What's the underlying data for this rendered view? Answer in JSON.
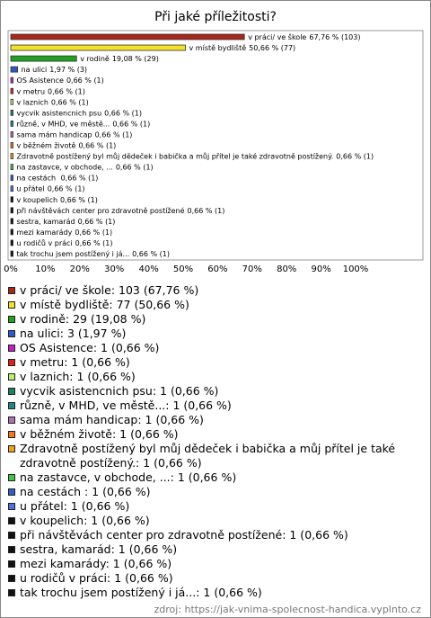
{
  "chart_data": {
    "type": "barh",
    "title": "Při jaké příležitosti?",
    "categories": [
      "v práci/ ve škole",
      "v místě bydliště",
      "v rodině",
      "na ulici",
      "OS Asistence",
      "v metru",
      "v laznich",
      "vycvik asistencnich psu",
      "různě, v MHD, ve městě...",
      "sama mám handicap",
      "v běžném životě",
      "Zdravotně postížený byl můj dědeček i babička a můj přítel je také zdravotně postížený.",
      "na zastavce, v obchode, ...",
      "na cestách ",
      "u přátel",
      "v koupelich",
      "při návštěvách center pro zdravotně postížené",
      "sestra, kamarád",
      "mezi kamarády",
      "u rodičů v práci",
      "tak trochu jsem postížený i já..."
    ],
    "values": [
      67.76,
      50.66,
      19.08,
      1.97,
      0.66,
      0.66,
      0.66,
      0.66,
      0.66,
      0.66,
      0.66,
      0.66,
      0.66,
      0.66,
      0.66,
      0.66,
      0.66,
      0.66,
      0.66,
      0.66,
      0.66
    ],
    "value_labels": [
      "67,76 % (103)",
      "50,66 % (77)",
      "19,08 % (29)",
      "1,97 % (3)",
      "0,66 % (1)",
      "0,66 % (1)",
      "0,66 % (1)",
      "0,66 % (1)",
      "0,66 % (1)",
      "0,66 % (1)",
      "0,66 % (1)",
      "0,66 % (1)",
      "0,66 % (1)",
      "0,66 % (1)",
      "0,66 % (1)",
      "0,66 % (1)",
      "0,66 % (1)",
      "0,66 % (1)",
      "0,66 % (1)",
      "0,66 % (1)",
      "0,66 % (1)"
    ],
    "colors": [
      "#a8281c",
      "#f2e22a",
      "#22a022",
      "#3355cc",
      "#c022c8",
      "#e02020",
      "#b8f070",
      "#208060",
      "#208888",
      "#b070b8",
      "#f07820",
      "#f0a020",
      "#44c444",
      "#3060c0",
      "#5070e0",
      "#111111",
      "#111111",
      "#111111",
      "#111111",
      "#111111",
      "#111111"
    ],
    "legend_labels": [
      "v práci/ ve škole: 103 (67,76 %)",
      "v místě bydliště: 77 (50,66 %)",
      "v rodině: 29 (19,08 %)",
      "na ulici: 3 (1,97 %)",
      "OS Asistence: 1 (0,66 %)",
      "v metru: 1 (0,66 %)",
      "v laznich: 1 (0,66 %)",
      "vycvik asistencnich psu: 1 (0,66 %)",
      "různě, v MHD, ve městě...: 1 (0,66 %)",
      "sama mám handicap: 1 (0,66 %)",
      "v běžném životě: 1 (0,66 %)",
      "Zdravotně postížený byl můj dědeček i babička a můj přítel je také zdravotně postížený.: 1 (0,66 %)",
      "na zastavce, v obchode, ...: 1 (0,66 %)",
      "na cestách  : 1 (0,66 %)",
      "u přátel: 1 (0,66 %)",
      "v koupelich: 1 (0,66 %)",
      "při návštěvách center pro zdravotně postížené: 1 (0,66 %)",
      "sestra, kamarád: 1 (0,66 %)",
      "mezi kamarády: 1 (0,66 %)",
      "u rodičů v práci: 1 (0,66 %)",
      "tak trochu jsem postížený i já...: 1 (0,66 %)"
    ],
    "xlim": [
      0,
      100
    ],
    "xticks": [
      {
        "value": 0,
        "label": "0%"
      },
      {
        "value": 10,
        "label": "10%"
      },
      {
        "value": 20,
        "label": "20%"
      },
      {
        "value": 30,
        "label": "30%"
      },
      {
        "value": 40,
        "label": "40%"
      },
      {
        "value": 50,
        "label": "50%"
      },
      {
        "value": 60,
        "label": "60%"
      },
      {
        "value": 70,
        "label": "70%"
      },
      {
        "value": 80,
        "label": "80%"
      },
      {
        "value": 90,
        "label": "90%"
      },
      {
        "value": 100,
        "label": "100%"
      }
    ],
    "grid": false,
    "source": "zdroj: https://jak-vnima-spolecnost-handica.vyplnto.cz"
  }
}
